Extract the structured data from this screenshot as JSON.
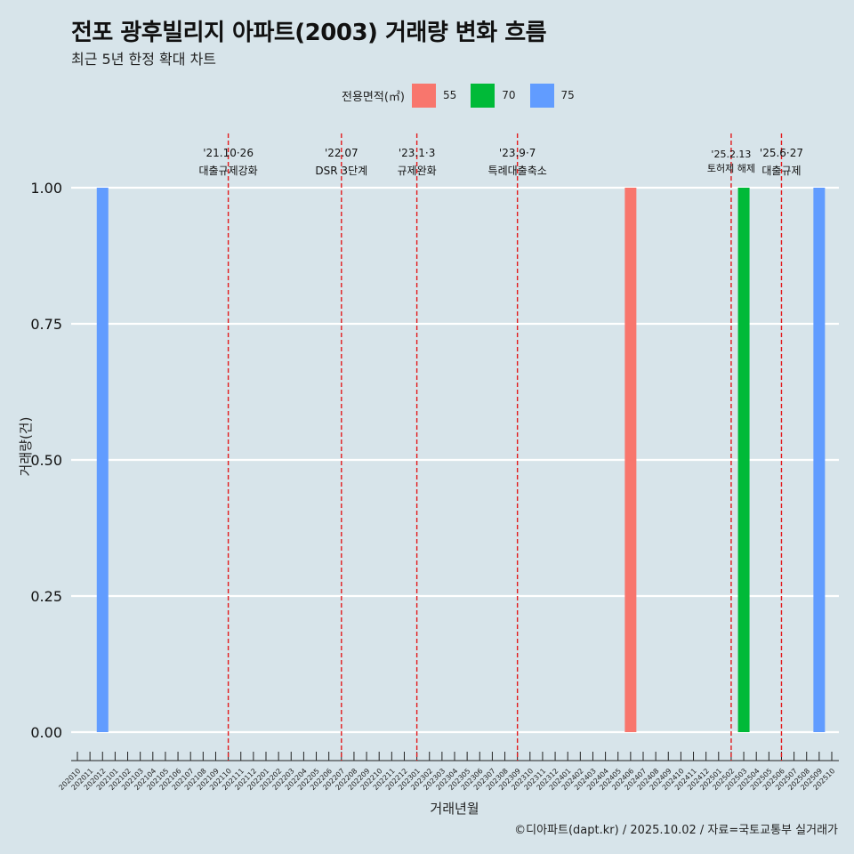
{
  "title": "전포 광후빌리지 아파트(2003) 거래량 변화 흐름",
  "subtitle": "최근 5년 한정 확대 차트",
  "caption": "©디아파트(dapt.kr) / 2025.10.02 / 자료=국토교통부 실거래가",
  "legend": {
    "title": "전용면적(㎡)",
    "items": [
      {
        "label": "55",
        "color": "#f8766d"
      },
      {
        "label": "70",
        "color": "#00ba38"
      },
      {
        "label": "75",
        "color": "#619cff"
      }
    ]
  },
  "chart_data": {
    "type": "bar",
    "xlabel": "거래년월",
    "ylabel": "거래량(건)",
    "ylim": [
      0,
      1
    ],
    "y_ticks": [
      "0.00",
      "0.25",
      "0.50",
      "0.75",
      "1.00"
    ],
    "categories": [
      "202010",
      "202011",
      "202012",
      "202101",
      "202102",
      "202103",
      "202104",
      "202105",
      "202106",
      "202107",
      "202108",
      "202109",
      "202110",
      "202111",
      "202112",
      "202201",
      "202202",
      "202203",
      "202204",
      "202205",
      "202206",
      "202207",
      "202208",
      "202209",
      "202210",
      "202211",
      "202212",
      "202301",
      "202302",
      "202303",
      "202304",
      "202305",
      "202306",
      "202307",
      "202308",
      "202309",
      "202310",
      "202311",
      "202312",
      "202401",
      "202402",
      "202403",
      "202404",
      "202405",
      "202406",
      "202407",
      "202408",
      "202409",
      "202410",
      "202411",
      "202412",
      "202501",
      "202502",
      "202503",
      "202504",
      "202505",
      "202506",
      "202507",
      "202508",
      "202509",
      "202510"
    ],
    "series": [
      {
        "name": "55",
        "points": [
          {
            "x": "202406",
            "y": 1
          }
        ]
      },
      {
        "name": "70",
        "points": [
          {
            "x": "202503",
            "y": 1
          }
        ]
      },
      {
        "name": "75",
        "points": [
          {
            "x": "202012",
            "y": 1
          },
          {
            "x": "202509",
            "y": 1
          }
        ]
      }
    ],
    "annotations": [
      {
        "x": "202110",
        "date": "'21.10·26",
        "text": "대출규제강화"
      },
      {
        "x": "202207",
        "date": "'22.07",
        "text": "DSR 3단계"
      },
      {
        "x": "202301",
        "date": "'23.1·3",
        "text": "규제완화"
      },
      {
        "x": "202309",
        "date": "'23.9·7",
        "text": "특례대출축소"
      },
      {
        "x": "202502",
        "date": "'25.2.13",
        "text": "토허제 해제"
      },
      {
        "x": "202506",
        "date": "'25.6·27",
        "text": "대출규제"
      }
    ],
    "grid": true
  }
}
